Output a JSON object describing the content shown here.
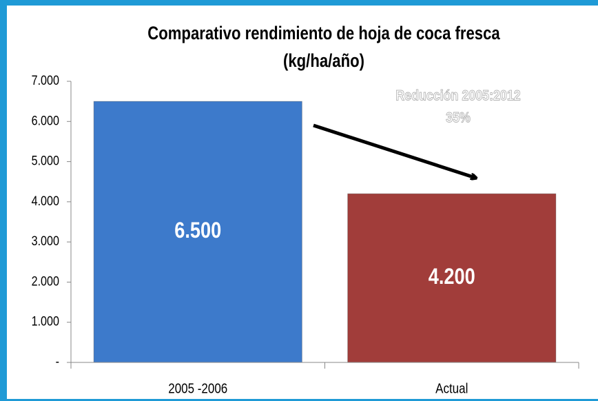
{
  "chart_data": {
    "type": "bar",
    "title": [
      "Comparativo rendimiento de hoja de coca fresca",
      "(kg/ha/año)"
    ],
    "annotation": [
      "Reducción 2005:2012",
      "35%"
    ],
    "categories": [
      "2005 -2006",
      "Actual"
    ],
    "values": [
      6500,
      4200
    ],
    "value_labels": [
      "6.500",
      "4.200"
    ],
    "colors": [
      "#3d7acb",
      "#a13d3a"
    ],
    "ylim": [
      0,
      7000
    ],
    "yticks": [
      {
        "value": 0,
        "label": "-"
      },
      {
        "value": 1000,
        "label": "1.000"
      },
      {
        "value": 2000,
        "label": "2.000"
      },
      {
        "value": 3000,
        "label": "3.000"
      },
      {
        "value": 4000,
        "label": "4.000"
      },
      {
        "value": 5000,
        "label": "5.000"
      },
      {
        "value": 6000,
        "label": "6.000"
      },
      {
        "value": 7000,
        "label": "7.000"
      }
    ],
    "grid": false
  }
}
